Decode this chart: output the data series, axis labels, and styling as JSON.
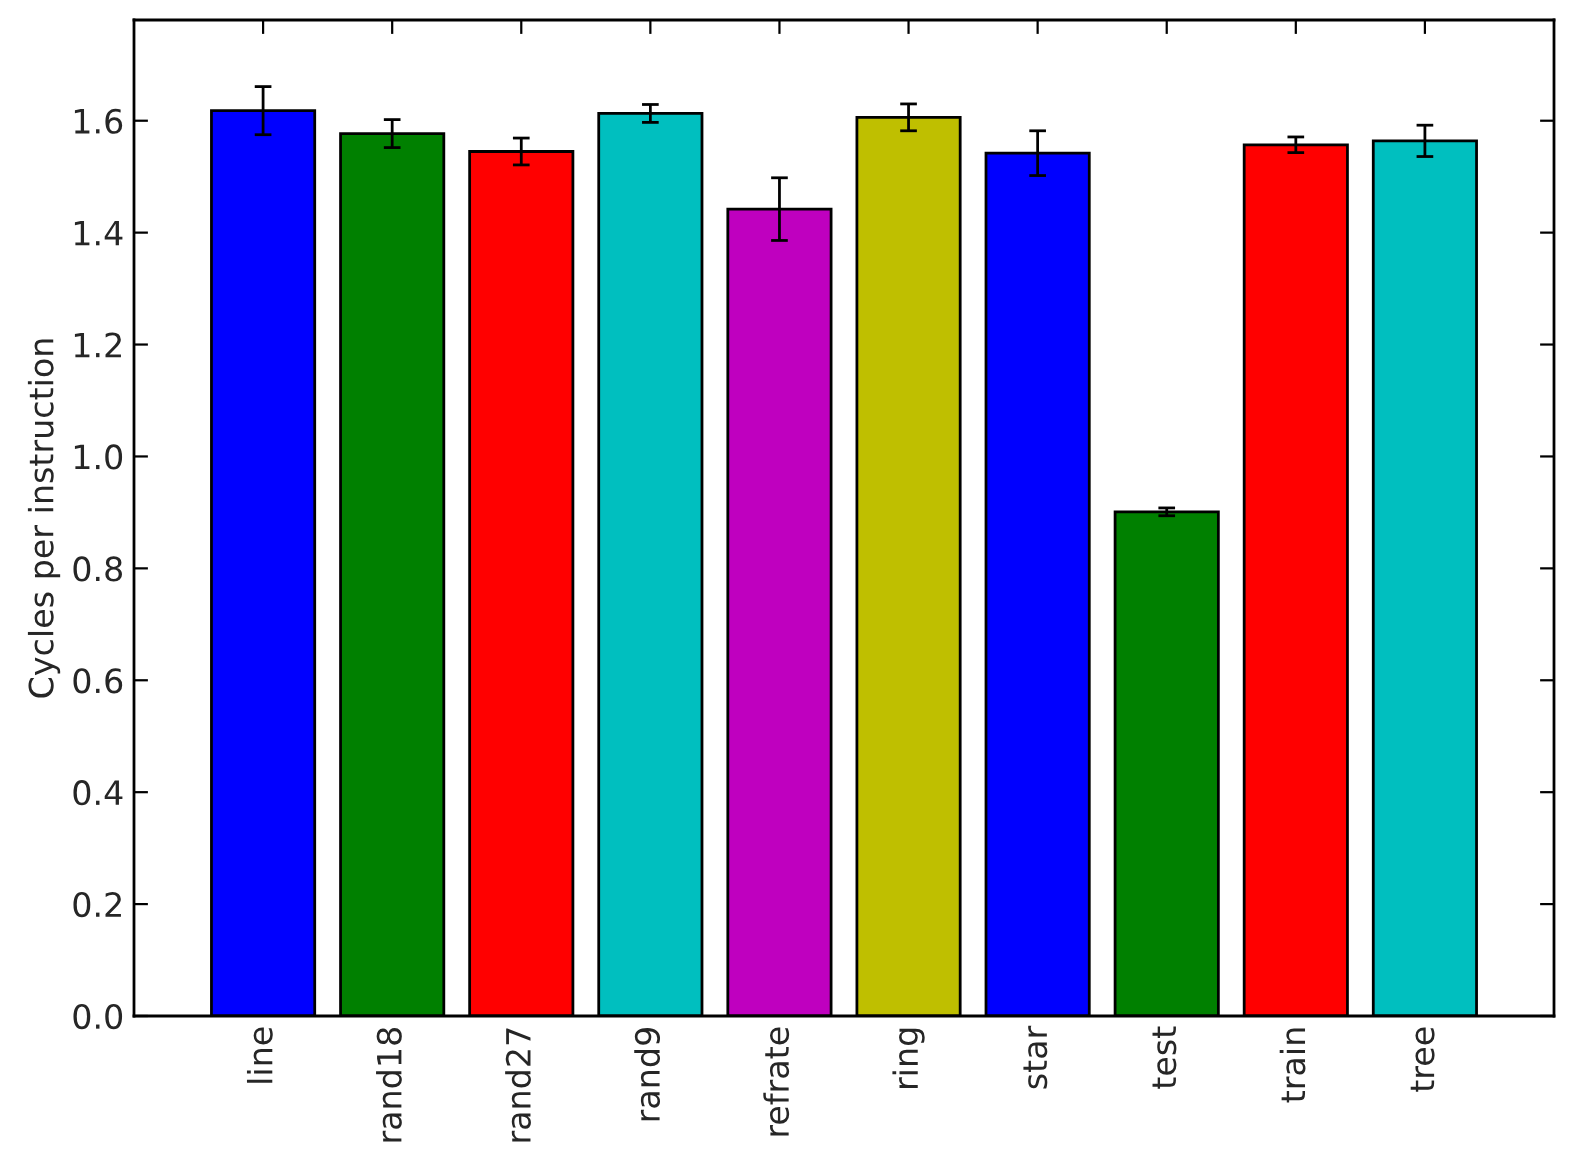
{
  "chart_data": {
    "type": "bar",
    "ylabel": "Cycles per instruction",
    "categories": [
      "line",
      "rand18",
      "rand27",
      "rand9",
      "refrate",
      "ring",
      "star",
      "test",
      "train",
      "tree"
    ],
    "values": [
      1.618,
      1.577,
      1.545,
      1.613,
      1.442,
      1.606,
      1.542,
      0.901,
      1.557,
      1.564
    ],
    "errors": [
      0.043,
      0.025,
      0.024,
      0.016,
      0.056,
      0.024,
      0.04,
      0.007,
      0.014,
      0.028
    ],
    "colors": [
      "#0000ff",
      "#008000",
      "#ff0000",
      "#00bfbf",
      "#bf00bf",
      "#bfbf00",
      "#0000ff",
      "#008000",
      "#ff0000",
      "#00bfbf"
    ],
    "ylim": [
      0,
      1.78
    ],
    "yticks": [
      {
        "value": 0,
        "label": "0.0"
      },
      {
        "value": 0.2,
        "label": "0.2"
      },
      {
        "value": 0.4,
        "label": "0.4"
      },
      {
        "value": 0.6,
        "label": "0.6"
      },
      {
        "value": 0.8,
        "label": "0.8"
      },
      {
        "value": 1.0,
        "label": "1.0"
      },
      {
        "value": 1.2,
        "label": "1.2"
      },
      {
        "value": 1.4,
        "label": "1.4"
      },
      {
        "value": 1.6,
        "label": "1.6"
      }
    ],
    "grid": false
  }
}
